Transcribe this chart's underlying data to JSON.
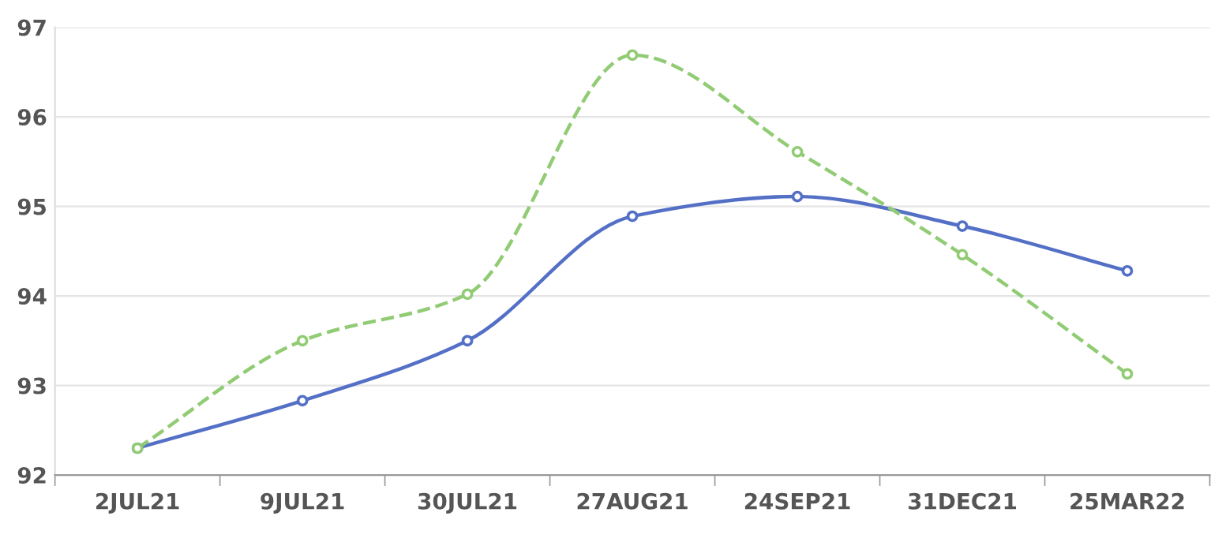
{
  "chart_data": {
    "type": "line",
    "categories": [
      "2JUL21",
      "9JUL21",
      "30JUL21",
      "27AUG21",
      "24SEP21",
      "31DEC21",
      "25MAR22"
    ],
    "series": [
      {
        "color": "#5470c6",
        "line_style": "solid",
        "values": [
          92.3,
          92.83,
          93.5,
          94.89,
          95.11,
          94.78,
          94.28
        ]
      },
      {
        "color": "#91cc75",
        "line_style": "dashed",
        "values": [
          92.3,
          93.5,
          94.02,
          96.69,
          95.61,
          94.46,
          93.13
        ]
      }
    ],
    "ylim": [
      92,
      97
    ],
    "yticks": [
      92,
      93,
      94,
      95,
      96,
      97
    ],
    "grid": "y",
    "marker": "circle",
    "legend": false
  }
}
